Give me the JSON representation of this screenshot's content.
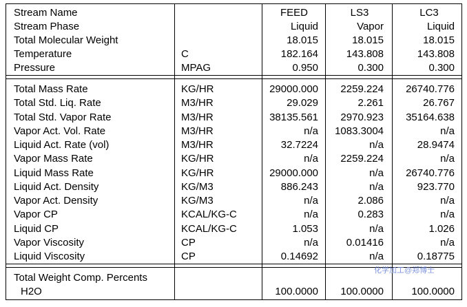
{
  "header": {
    "stream_name_label": "Stream Name",
    "stream_phase_label": "Stream Phase",
    "streams": [
      {
        "name": "FEED",
        "phase": "Liquid"
      },
      {
        "name": "LS3",
        "phase": "Vapor"
      },
      {
        "name": "LC3",
        "phase": "Liquid"
      }
    ]
  },
  "summary_rows": [
    {
      "label": "Total Molecular Weight",
      "unit": "",
      "values": [
        "18.015",
        "18.015",
        "18.015"
      ]
    },
    {
      "label": "Temperature",
      "unit": "C",
      "values": [
        "182.164",
        "143.808",
        "143.808"
      ]
    },
    {
      "label": "Pressure",
      "unit": "MPAG",
      "values": [
        "0.950",
        "0.300",
        "0.300"
      ]
    }
  ],
  "property_rows": [
    {
      "label": "Total Mass Rate",
      "unit": "KG/HR",
      "values": [
        "29000.000",
        "2259.224",
        "26740.776"
      ]
    },
    {
      "label": "Total Std. Liq. Rate",
      "unit": "M3/HR",
      "values": [
        "29.029",
        "2.261",
        "26.767"
      ]
    },
    {
      "label": "Total Std. Vapor Rate",
      "unit": "M3/HR",
      "values": [
        "38135.561",
        "2970.923",
        "35164.638"
      ]
    },
    {
      "label": "Vapor Act. Vol. Rate",
      "unit": "M3/HR",
      "values": [
        "n/a",
        "1083.3004",
        "n/a"
      ]
    },
    {
      "label": "Liquid Act. Rate (vol)",
      "unit": "M3/HR",
      "values": [
        "32.7224",
        "n/a",
        "28.9474"
      ]
    },
    {
      "label": "Vapor Mass Rate",
      "unit": "KG/HR",
      "values": [
        "n/a",
        "2259.224",
        "n/a"
      ]
    },
    {
      "label": "Liquid Mass Rate",
      "unit": "KG/HR",
      "values": [
        "29000.000",
        "n/a",
        "26740.776"
      ]
    },
    {
      "label": "Liquid Act. Density",
      "unit": "KG/M3",
      "values": [
        "886.243",
        "n/a",
        "923.770"
      ]
    },
    {
      "label": "Vapor Act. Density",
      "unit": "KG/M3",
      "values": [
        "n/a",
        "2.086",
        "n/a"
      ]
    },
    {
      "label": "Vapor CP",
      "unit": "KCAL/KG-C",
      "values": [
        "n/a",
        "0.283",
        "n/a"
      ]
    },
    {
      "label": "Liquid CP",
      "unit": "KCAL/KG-C",
      "values": [
        "1.053",
        "n/a",
        "1.026"
      ]
    },
    {
      "label": "Vapor Viscosity",
      "unit": "CP",
      "values": [
        "n/a",
        "0.01416",
        "n/a"
      ]
    },
    {
      "label": "Liquid Viscosity",
      "unit": "CP",
      "values": [
        "0.14692",
        "n/a",
        "0.18775"
      ]
    }
  ],
  "composition": {
    "title": "Total Weight Comp. Percents",
    "rows": [
      {
        "label": "H2O",
        "unit": "",
        "values": [
          "100.0000",
          "100.0000",
          "100.0000"
        ]
      }
    ]
  },
  "watermark": "化学加工@郑博士"
}
